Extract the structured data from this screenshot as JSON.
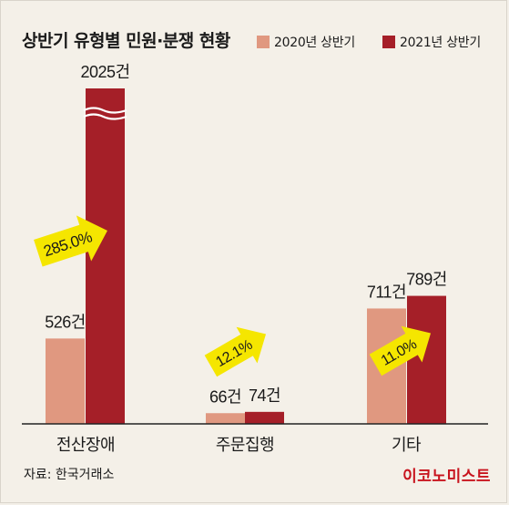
{
  "title": "상반기 유형별 민원·분쟁 현황",
  "legend": [
    {
      "label": "2020년 상반기",
      "color": "#e09880"
    },
    {
      "label": "2021년 상반기",
      "color": "#a51f28"
    }
  ],
  "source": "자료: 한국거래소",
  "brand": "이코노미스트",
  "chart_data": {
    "type": "bar",
    "title": "상반기 유형별 민원·분쟁 현황",
    "categories": [
      "전산장애",
      "주문집행",
      "기타"
    ],
    "series": [
      {
        "name": "2020년 상반기",
        "values": [
          526,
          66,
          711
        ],
        "labels": [
          "526건",
          "66건",
          "711건"
        ]
      },
      {
        "name": "2021년 상반기",
        "values": [
          2025,
          74,
          789
        ],
        "labels": [
          "2025건",
          "74건",
          "789건"
        ]
      }
    ],
    "growth_labels": [
      "285.0%",
      "12.1%",
      "11.0%"
    ],
    "axis_break": {
      "category": "전산장애",
      "series": "2021년 상반기"
    },
    "grid": false,
    "legend_position": "top-right"
  }
}
